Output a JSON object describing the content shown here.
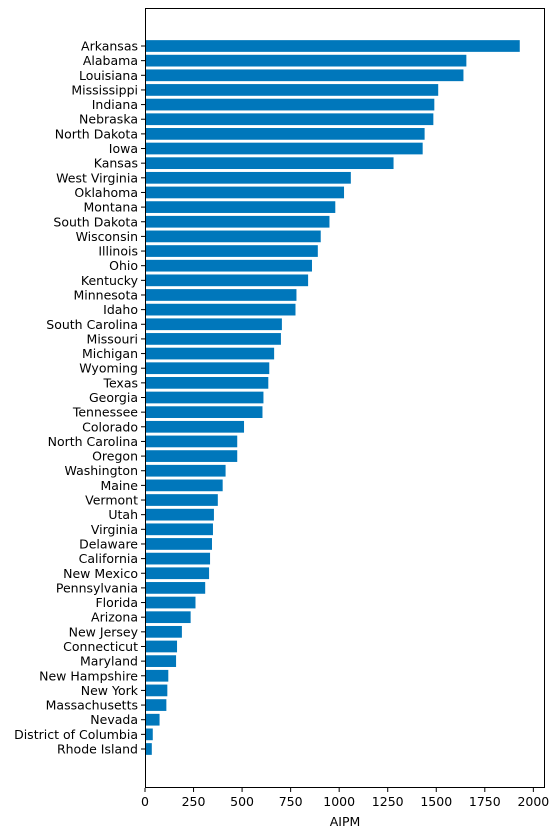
{
  "chart_data": {
    "type": "bar",
    "orientation": "horizontal",
    "xlabel": "AIPM",
    "ylabel": "",
    "title": "",
    "xlim": [
      0,
      2060
    ],
    "xticks": [
      0,
      250,
      500,
      750,
      1000,
      1250,
      1500,
      1750,
      2000
    ],
    "grid": false,
    "bar_color": "#0077bb",
    "categories": [
      "Arkansas",
      "Alabama",
      "Louisiana",
      "Mississippi",
      "Indiana",
      "Nebraska",
      "North Dakota",
      "Iowa",
      "Kansas",
      "West Virginia",
      "Oklahoma",
      "Montana",
      "South Dakota",
      "Wisconsin",
      "Illinois",
      "Ohio",
      "Kentucky",
      "Minnesota",
      "Idaho",
      "South Carolina",
      "Missouri",
      "Michigan",
      "Wyoming",
      "Texas",
      "Georgia",
      "Tennessee",
      "Colorado",
      "North Carolina",
      "Oregon",
      "Washington",
      "Maine",
      "Vermont",
      "Utah",
      "Virginia",
      "Delaware",
      "California",
      "New Mexico",
      "Pennsylvania",
      "Florida",
      "Arizona",
      "New Jersey",
      "Connecticut",
      "Maryland",
      "New Hampshire",
      "New York",
      "Massachusetts",
      "Nevada",
      "District of Columbia",
      "Rhode Island"
    ],
    "values": [
      1930,
      1655,
      1640,
      1510,
      1490,
      1485,
      1440,
      1430,
      1280,
      1060,
      1025,
      980,
      950,
      905,
      890,
      860,
      840,
      780,
      775,
      705,
      700,
      665,
      640,
      635,
      610,
      605,
      510,
      475,
      475,
      415,
      400,
      375,
      355,
      350,
      345,
      335,
      330,
      310,
      260,
      235,
      190,
      165,
      160,
      120,
      115,
      110,
      75,
      40,
      35
    ]
  }
}
